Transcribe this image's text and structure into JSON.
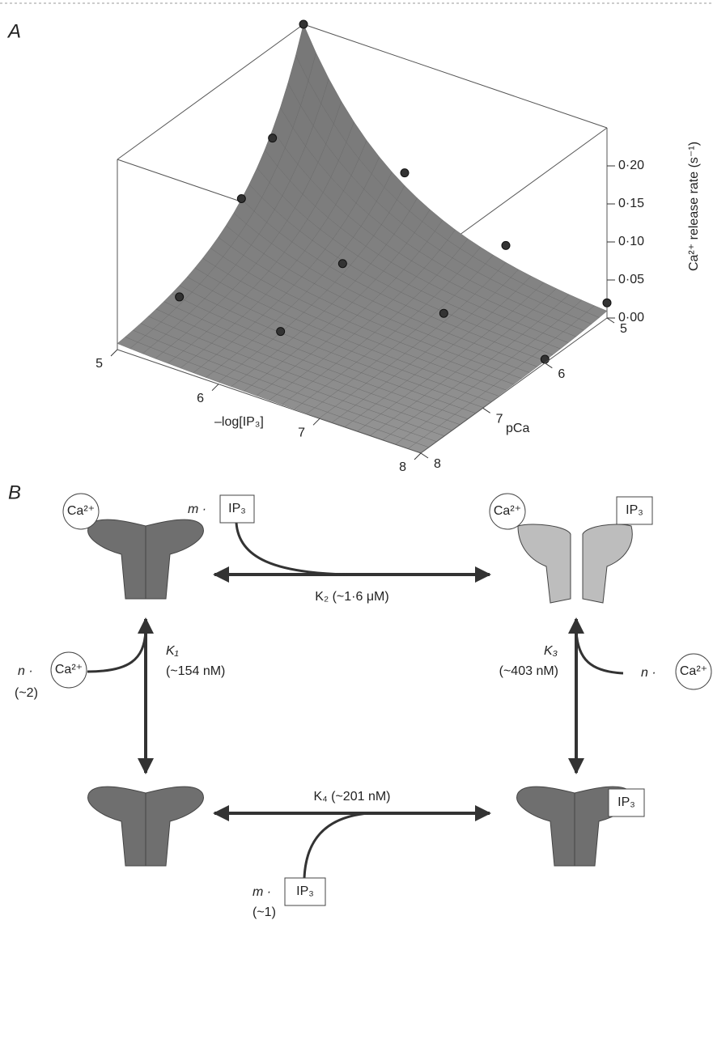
{
  "chart_data": {
    "type": "surface3d",
    "panel_label": "A",
    "x_label": "–log[IP₃]",
    "y_label": "pCa",
    "z_label": "Ca²⁺ release rate (s⁻¹)",
    "xlim": [
      5,
      8
    ],
    "xticks": [
      5,
      6,
      7,
      8
    ],
    "ylim": [
      5,
      8
    ],
    "yticks": [
      5,
      6,
      7,
      8
    ],
    "zlim": [
      0,
      0.25
    ],
    "zticks": [
      {
        "value": 0,
        "label": "0·00"
      },
      {
        "value": 0.05,
        "label": "0·05"
      },
      {
        "value": 0.1,
        "label": "0·10"
      },
      {
        "value": 0.15,
        "label": "0·15"
      },
      {
        "value": 0.2,
        "label": "0·20"
      }
    ],
    "color": "#8a8a8a",
    "points": [
      {
        "log_ip3": 5,
        "pCa": 5,
        "rate": 0.25
      },
      {
        "log_ip3": 5,
        "pCa": 5.5,
        "rate": 0.13
      },
      {
        "log_ip3": 5,
        "pCa": 6,
        "rate": 0.08
      },
      {
        "log_ip3": 5,
        "pCa": 7,
        "rate": 0.01
      },
      {
        "log_ip3": 6,
        "pCa": 5,
        "rate": 0.1
      },
      {
        "log_ip3": 6,
        "pCa": 6,
        "rate": 0.04
      },
      {
        "log_ip3": 6,
        "pCa": 7,
        "rate": 0.01
      },
      {
        "log_ip3": 7,
        "pCa": 5,
        "rate": 0.05
      },
      {
        "log_ip3": 7,
        "pCa": 6,
        "rate": 0.02
      },
      {
        "log_ip3": 8,
        "pCa": 5,
        "rate": 0.02
      },
      {
        "log_ip3": 8,
        "pCa": 6,
        "rate": 0.005
      }
    ]
  },
  "diagram": {
    "panel_label": "B",
    "top_ligand": {
      "prefix": "m ·",
      "box": "IP₃"
    },
    "k2": "K₂ (~1·6 μM)",
    "k1": {
      "name": "K₁",
      "value": "(~154 nM)",
      "prefix": "n ·",
      "circle": "Ca²⁺",
      "coef": "(~2)"
    },
    "k3": {
      "name": "K₃",
      "value": "(~403 nM)",
      "prefix": "n ·",
      "circle": "Ca²⁺"
    },
    "k4": "K₄ (~201 nM)",
    "bottom_ligand": {
      "prefix": "m ·",
      "box": "IP₃",
      "coef": "(~1)"
    },
    "states": {
      "top_left_ca": "Ca²⁺",
      "top_right_ca": "Ca²⁺",
      "top_right_ip3": "IP₃",
      "bottom_right_ip3": "IP₃"
    }
  }
}
